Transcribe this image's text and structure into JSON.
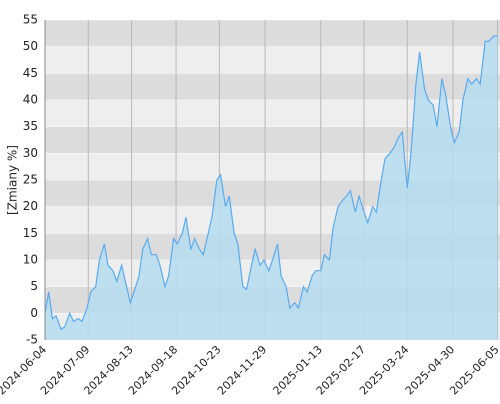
{
  "chart_data": {
    "type": "area",
    "ylabel": "[Zmiany %]",
    "color": "#5aaaf0",
    "fill": "#b4dcee",
    "ylim": [
      -5,
      55
    ],
    "yticks": [
      -5,
      0,
      5,
      10,
      15,
      20,
      25,
      30,
      35,
      40,
      45,
      50,
      55
    ],
    "xlim": [
      "2024-06-04",
      "2025-06-07"
    ],
    "xticks": [
      "2024-06-04",
      "2024-07-09",
      "2024-08-13",
      "2024-09-18",
      "2024-10-23",
      "2024-11-29",
      "2025-01-13",
      "2025-02-17",
      "2025-03-24",
      "2025-04-30",
      "2025-06-05"
    ],
    "grid": true,
    "x": [
      "2024-06-04",
      "2024-06-07",
      "2024-06-10",
      "2024-06-13",
      "2024-06-17",
      "2024-06-20",
      "2024-06-24",
      "2024-06-27",
      "2024-07-01",
      "2024-07-04",
      "2024-07-08",
      "2024-07-11",
      "2024-07-15",
      "2024-07-18",
      "2024-07-22",
      "2024-07-25",
      "2024-07-29",
      "2024-08-01",
      "2024-08-05",
      "2024-08-08",
      "2024-08-12",
      "2024-08-15",
      "2024-08-19",
      "2024-08-22",
      "2024-08-26",
      "2024-08-29",
      "2024-09-02",
      "2024-09-05",
      "2024-09-09",
      "2024-09-12",
      "2024-09-16",
      "2024-09-19",
      "2024-09-23",
      "2024-09-26",
      "2024-09-30",
      "2024-10-03",
      "2024-10-07",
      "2024-10-10",
      "2024-10-14",
      "2024-10-17",
      "2024-10-21",
      "2024-10-24",
      "2024-10-28",
      "2024-10-31",
      "2024-11-04",
      "2024-11-07",
      "2024-11-11",
      "2024-11-14",
      "2024-11-18",
      "2024-11-21",
      "2024-11-25",
      "2024-11-28",
      "2024-12-02",
      "2024-12-05",
      "2024-12-09",
      "2024-12-12",
      "2024-12-16",
      "2024-12-19",
      "2024-12-23",
      "2024-12-26",
      "2024-12-30",
      "2025-01-02",
      "2025-01-06",
      "2025-01-09",
      "2025-01-13",
      "2025-01-16",
      "2025-01-20",
      "2025-01-23",
      "2025-01-27",
      "2025-01-30",
      "2025-02-03",
      "2025-02-06",
      "2025-02-10",
      "2025-02-13",
      "2025-02-17",
      "2025-02-20",
      "2025-02-24",
      "2025-02-27",
      "2025-03-03",
      "2025-03-06",
      "2025-03-10",
      "2025-03-13",
      "2025-03-17",
      "2025-03-20",
      "2025-03-24",
      "2025-03-27",
      "2025-03-31",
      "2025-04-03",
      "2025-04-07",
      "2025-04-10",
      "2025-04-14",
      "2025-04-17",
      "2025-04-21",
      "2025-04-24",
      "2025-04-28",
      "2025-05-01",
      "2025-05-05",
      "2025-05-08",
      "2025-05-12",
      "2025-05-15",
      "2025-05-19",
      "2025-05-22",
      "2025-05-26",
      "2025-05-29",
      "2025-06-02",
      "2025-06-05"
    ],
    "values": [
      0,
      4,
      -1,
      -0.5,
      -3,
      -2.5,
      0,
      -1.5,
      -1,
      -1.5,
      1,
      4,
      5,
      10,
      13,
      9,
      8,
      6,
      9,
      6,
      2,
      4,
      7,
      12,
      14,
      11,
      11,
      9,
      5,
      7,
      14,
      13,
      15,
      18,
      12,
      14,
      12,
      11,
      15,
      18,
      25,
      26,
      20,
      22,
      15,
      13,
      5,
      4.5,
      9,
      12,
      9,
      10,
      8,
      10,
      13,
      7,
      5,
      1,
      2,
      1,
      5,
      4,
      7,
      8,
      8,
      11,
      10,
      16,
      20,
      21,
      22,
      23,
      19,
      22,
      19,
      17,
      20,
      19,
      25,
      29,
      30,
      31,
      33,
      34,
      23.5,
      30,
      43,
      49,
      42,
      40,
      39,
      35,
      44,
      41,
      35,
      32,
      34,
      40,
      44,
      43,
      44,
      43,
      51,
      51,
      52,
      52
    ]
  }
}
